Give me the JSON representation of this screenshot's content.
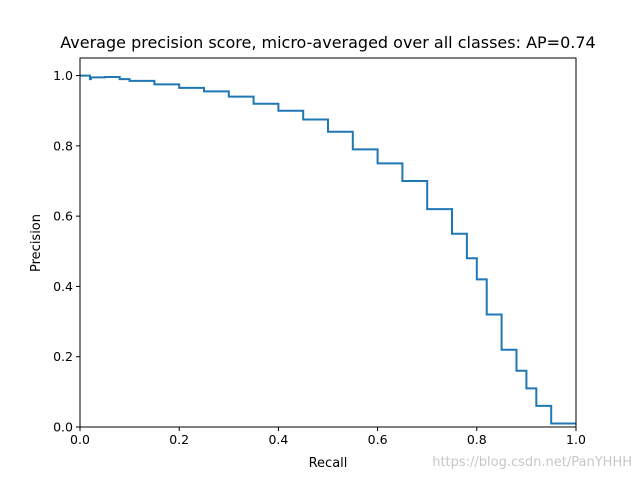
{
  "chart_data": {
    "type": "line",
    "title": "Average precision score, micro-averaged over all classes: AP=0.74",
    "xlabel": "Recall",
    "ylabel": "Precision",
    "xlim": [
      0.0,
      1.0
    ],
    "ylim": [
      0.0,
      1.05
    ],
    "grid": false,
    "x_ticks": [
      "0.0",
      "0.2",
      "0.4",
      "0.6",
      "0.8",
      "1.0"
    ],
    "y_ticks": [
      "0.0",
      "0.2",
      "0.4",
      "0.6",
      "0.8",
      "1.0"
    ],
    "series": [
      {
        "color": "#1f77b4",
        "step": true,
        "x": [
          0.0,
          0.02,
          0.022,
          0.05,
          0.08,
          0.1,
          0.15,
          0.2,
          0.25,
          0.3,
          0.35,
          0.4,
          0.45,
          0.5,
          0.55,
          0.6,
          0.65,
          0.7,
          0.75,
          0.78,
          0.8,
          0.82,
          0.85,
          0.88,
          0.9,
          0.92,
          0.95,
          1.0
        ],
        "y": [
          1.0,
          1.0,
          0.99,
          0.995,
          0.996,
          0.99,
          0.985,
          0.975,
          0.965,
          0.955,
          0.94,
          0.92,
          0.9,
          0.875,
          0.84,
          0.79,
          0.75,
          0.7,
          0.62,
          0.55,
          0.48,
          0.42,
          0.32,
          0.22,
          0.16,
          0.11,
          0.06,
          0.01
        ]
      }
    ]
  },
  "watermark": "https://blog.csdn.net/PanYHHH"
}
